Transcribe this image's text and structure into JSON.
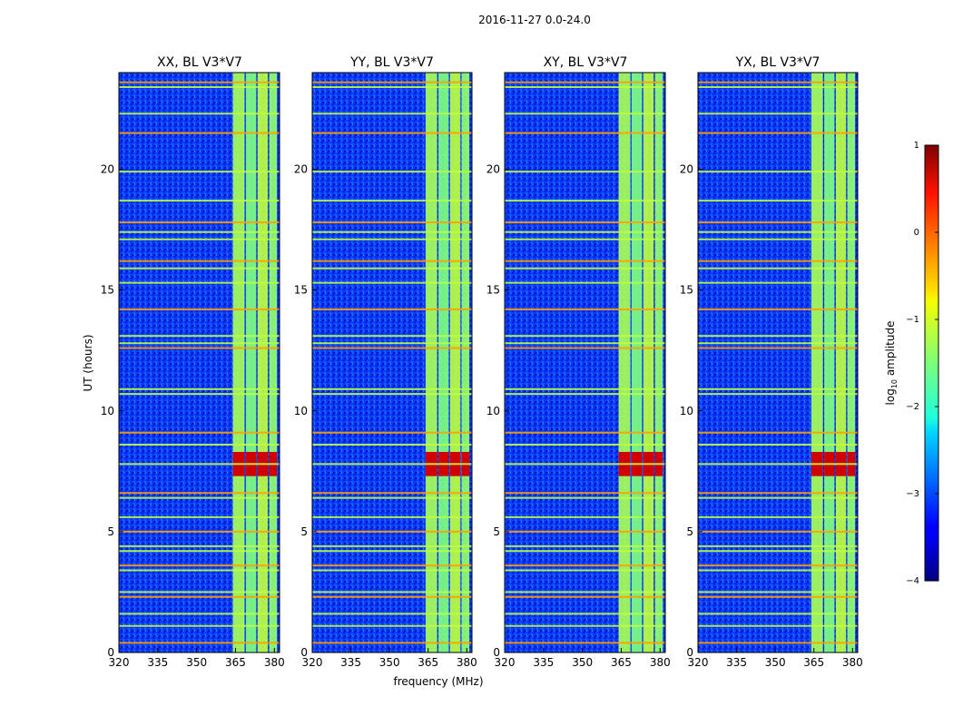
{
  "figure": {
    "suptitle": "2016-11-27 0.0-24.0"
  },
  "chart_data": {
    "type": "heatmap",
    "title": "2016-11-27 0.0-24.0",
    "xlabel": "frequency (MHz)",
    "ylabel": "UT (hours)",
    "xlim": [
      320,
      382
    ],
    "ylim": [
      0,
      24
    ],
    "x_ticks": [
      320,
      335,
      350,
      365,
      380
    ],
    "y_ticks": [
      0,
      5,
      10,
      15,
      20
    ],
    "colorbar": {
      "label": "log",
      "label_subscript": "10",
      "label_suffix": " amplitude",
      "range": [
        -4,
        1
      ],
      "ticks": [
        1,
        0,
        -1,
        -2,
        -3,
        -4
      ],
      "tick_labels": [
        "1",
        "0",
        "−1",
        "−2",
        "−3",
        "−4"
      ],
      "colormap": "jet"
    },
    "panels": [
      {
        "title": "XX, BL V3*V7",
        "polarization": "XX",
        "baseline": "V3*V7"
      },
      {
        "title": "YY, BL V3*V7",
        "polarization": "YY",
        "baseline": "V3*V7"
      },
      {
        "title": "XY, BL V3*V7",
        "polarization": "XY",
        "baseline": "V3*V7"
      },
      {
        "title": "YX, BL V3*V7",
        "polarization": "YX",
        "baseline": "V3*V7"
      }
    ],
    "background_level": -3.2,
    "bands": [
      {
        "f0": 364,
        "f1": 368.5,
        "level": -1.3
      },
      {
        "f0": 369,
        "f1": 373,
        "level": -1.5
      },
      {
        "f0": 373.5,
        "f1": 377.5,
        "level": -1.2
      },
      {
        "f0": 378,
        "f1": 381,
        "level": -1.4
      }
    ],
    "band_peak": {
      "t0": 7.3,
      "t1": 8.3,
      "level": 0.6
    },
    "rfi_hours": [
      0.4,
      1.1,
      1.6,
      2.3,
      2.5,
      3.4,
      3.6,
      4.2,
      4.4,
      5.0,
      5.6,
      6.4,
      6.6,
      7.8,
      8.6,
      9.1,
      10.7,
      10.9,
      12.6,
      12.8,
      13.1,
      14.2,
      15.3,
      15.9,
      16.2,
      17.1,
      17.4,
      17.8,
      18.7,
      19.9,
      21.5,
      22.3,
      23.4,
      23.6
    ]
  }
}
